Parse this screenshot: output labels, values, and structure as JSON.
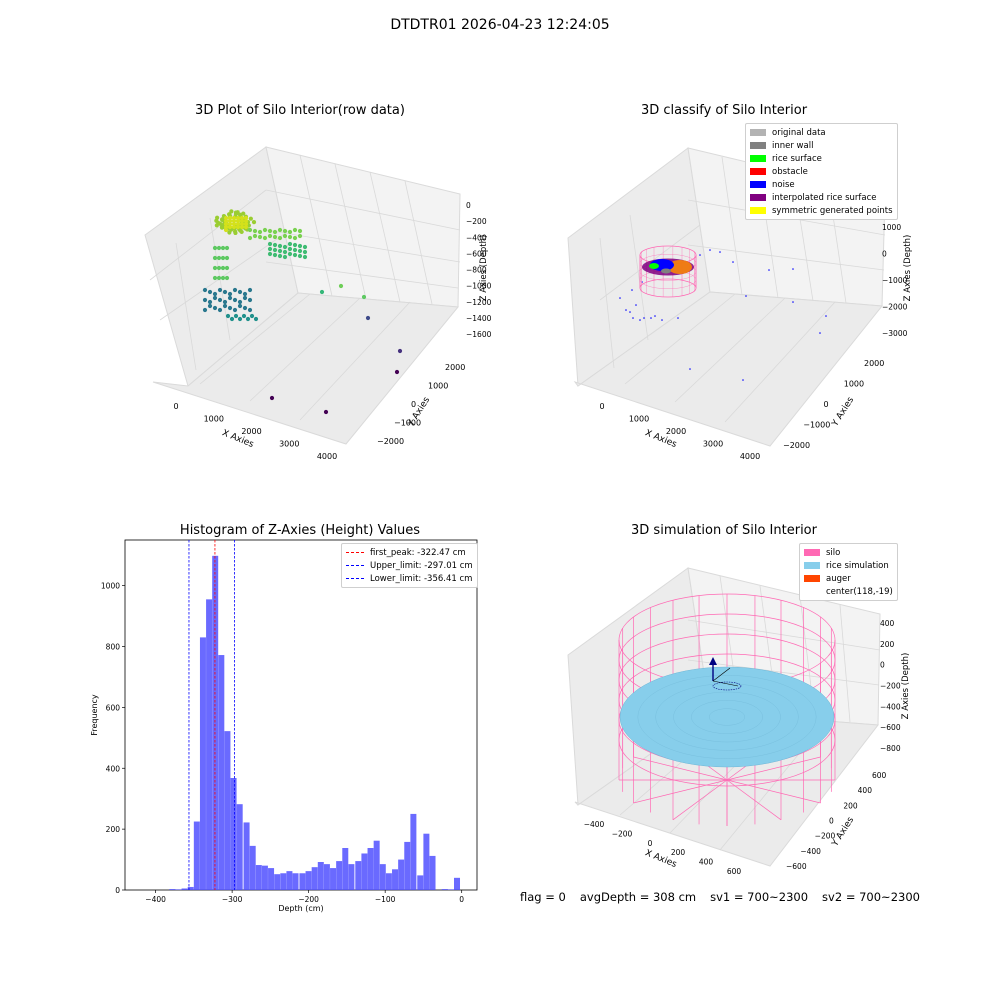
{
  "suptitle": "DTDTR01 2026-04-23 12:24:05",
  "footer": {
    "flag": "flag = 0",
    "avg_depth": "avgDepth = 308 cm",
    "sv1": "sv1 = 700~2300",
    "sv2": "sv2 = 700~2300"
  },
  "colors": {
    "original_data": "#b3b3b3",
    "inner_wall": "#808080",
    "rice_surface": "#00ff00",
    "obstacle": "#ff0000",
    "noise": "#0000ff",
    "interpolated_rice_surface": "#800080",
    "symmetric_generated_points": "#ffff00",
    "silo": "#ff69b4",
    "rice_simulation": "#87ceeb",
    "auger": "#ff4500",
    "histogram_bar": "#5050ff"
  },
  "chart_data": [
    {
      "type": "scatter",
      "projection": "3d",
      "title": "3D Plot of Silo Interior(row data)",
      "xlabel": "X Axies",
      "ylabel": "Y Axies",
      "zlabel": "Z Axies (Depth)",
      "x_ticks": [
        "0",
        "1000",
        "2000",
        "3000",
        "4000"
      ],
      "y_ticks": [
        "−2000",
        "−1000",
        "0",
        "1000",
        "2000"
      ],
      "z_ticks": [
        "0",
        "−200",
        "−400",
        "−600",
        "−800",
        "−1000",
        "−1200",
        "−1400",
        "−1600"
      ],
      "colormap": "viridis",
      "grid": true
    },
    {
      "type": "scatter",
      "projection": "3d",
      "title": "3D classify of Silo Interior",
      "xlabel": "X Axies",
      "ylabel": "Y Axies",
      "zlabel": "Z Axies (Depth)",
      "x_ticks": [
        "0",
        "1000",
        "2000",
        "3000",
        "4000"
      ],
      "y_ticks": [
        "−2000",
        "−1000",
        "0",
        "1000",
        "2000"
      ],
      "z_ticks": [
        "1000",
        "0",
        "−1000",
        "−2000",
        "−3000"
      ],
      "legend": [
        "original data",
        "inner wall",
        "rice surface",
        "obstacle",
        "noise",
        "interpolated rice surface",
        "symmetric generated points"
      ],
      "legend_position": "top-right",
      "grid": true
    },
    {
      "type": "bar",
      "title": "Histogram of Z-Axies (Height) Values",
      "xlabel": "Depth (cm)",
      "ylabel": "Frequency",
      "xlim": [
        -440,
        20
      ],
      "ylim": [
        0,
        1150
      ],
      "x_ticks": [
        -400,
        -300,
        -200,
        -100,
        0
      ],
      "x_tick_labels": [
        "−400",
        "−300",
        "−200",
        "−100",
        "0"
      ],
      "y_ticks": [
        0,
        200,
        400,
        600,
        800,
        1000
      ],
      "bin_width": 8.1,
      "bins": [
        {
          "x": -378,
          "y": 3
        },
        {
          "x": -370,
          "y": 2
        },
        {
          "x": -362,
          "y": 5
        },
        {
          "x": -354,
          "y": 10
        },
        {
          "x": -346,
          "y": 225
        },
        {
          "x": -338,
          "y": 830
        },
        {
          "x": -330,
          "y": 955
        },
        {
          "x": -322,
          "y": 1098
        },
        {
          "x": -314,
          "y": 772
        },
        {
          "x": -306,
          "y": 522
        },
        {
          "x": -298,
          "y": 368
        },
        {
          "x": -290,
          "y": 282
        },
        {
          "x": -281,
          "y": 222
        },
        {
          "x": -273,
          "y": 145
        },
        {
          "x": -265,
          "y": 82
        },
        {
          "x": -257,
          "y": 80
        },
        {
          "x": -249,
          "y": 72
        },
        {
          "x": -241,
          "y": 52
        },
        {
          "x": -233,
          "y": 55
        },
        {
          "x": -225,
          "y": 62
        },
        {
          "x": -217,
          "y": 55
        },
        {
          "x": -208,
          "y": 55
        },
        {
          "x": -200,
          "y": 62
        },
        {
          "x": -192,
          "y": 75
        },
        {
          "x": -184,
          "y": 92
        },
        {
          "x": -176,
          "y": 85
        },
        {
          "x": -168,
          "y": 72
        },
        {
          "x": -160,
          "y": 95
        },
        {
          "x": -152,
          "y": 138
        },
        {
          "x": -144,
          "y": 85
        },
        {
          "x": -135,
          "y": 95
        },
        {
          "x": -127,
          "y": 120
        },
        {
          "x": -119,
          "y": 138
        },
        {
          "x": -111,
          "y": 162
        },
        {
          "x": -103,
          "y": 85
        },
        {
          "x": -95,
          "y": 55
        },
        {
          "x": -87,
          "y": 68
        },
        {
          "x": -79,
          "y": 100
        },
        {
          "x": -71,
          "y": 158
        },
        {
          "x": -63,
          "y": 250
        },
        {
          "x": -54,
          "y": 48
        },
        {
          "x": -46,
          "y": 185
        },
        {
          "x": -38,
          "y": 112
        },
        {
          "x": -22,
          "y": 3
        },
        {
          "x": -14,
          "y": 2
        },
        {
          "x": -6,
          "y": 40
        }
      ],
      "vlines": [
        {
          "label": "first_peak: -322.47 cm",
          "x": -322.47,
          "color": "#ff0000"
        },
        {
          "label": "Upper_limit: -297.01 cm",
          "x": -297.01,
          "color": "#0000ff"
        },
        {
          "label": "Lower_limit: -356.41 cm",
          "x": -356.41,
          "color": "#0000ff"
        }
      ],
      "legend_position": "top-right"
    },
    {
      "type": "area",
      "projection": "3d",
      "title": "3D simulation of Silo Interior",
      "xlabel": "X Axies",
      "ylabel": "Y Axies",
      "zlabel": "Z Axies (Depth)",
      "x_ticks": [
        "−400",
        "−200",
        "0",
        "200",
        "400",
        "600"
      ],
      "y_ticks": [
        "−600",
        "−400",
        "−200",
        "0",
        "200",
        "400",
        "600"
      ],
      "z_ticks": [
        "400",
        "200",
        "0",
        "−200",
        "−400",
        "−600",
        "−800"
      ],
      "legend": [
        "silo",
        "rice simulation",
        "auger",
        "center(118,-19)"
      ],
      "legend_position": "top-right",
      "grid": true
    }
  ]
}
